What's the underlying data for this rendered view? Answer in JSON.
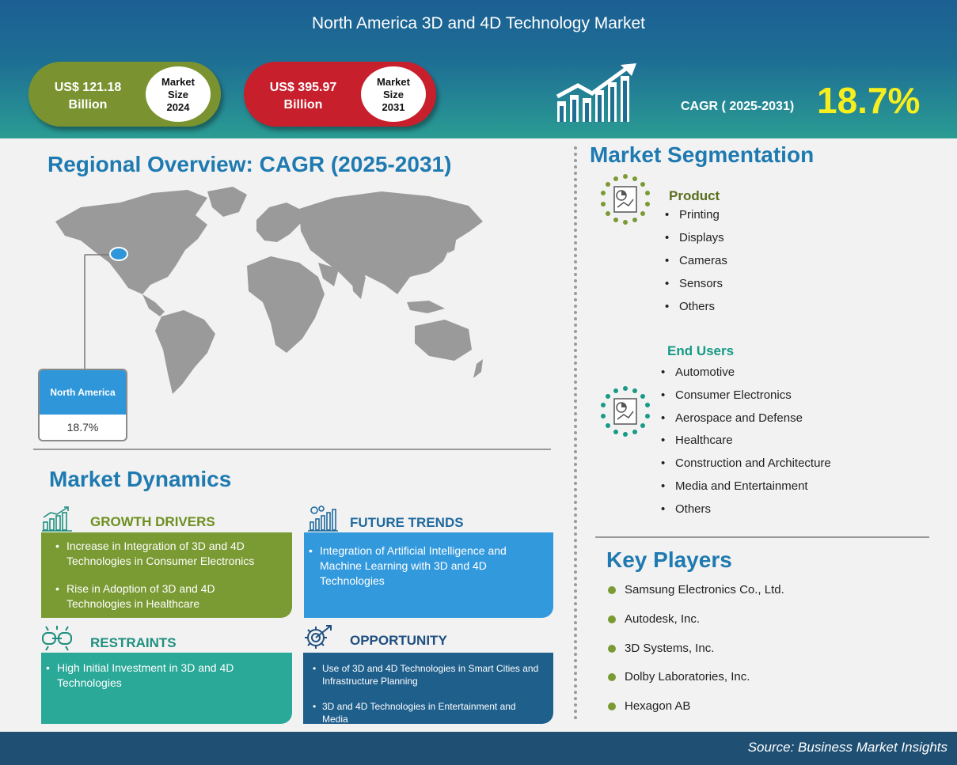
{
  "header": {
    "title": "North America 3D and 4D Technology Market",
    "market_2024": {
      "amount": "US$ 121.18",
      "unit": "Billion",
      "badge_line1": "Market",
      "badge_line2": "Size",
      "badge_year": "2024"
    },
    "market_2031": {
      "amount": "US$ 395.97",
      "unit": "Billion",
      "badge_line1": "Market",
      "badge_line2": "Size",
      "badge_year": "2031"
    },
    "cagr_label": "CAGR ( 2025-2031)",
    "cagr_value": "18.7%"
  },
  "regional": {
    "title": "Regional Overview: CAGR (2025-2031)",
    "region_name": "North America",
    "region_value": "18.7%"
  },
  "segmentation": {
    "title": "Market Segmentation",
    "product": {
      "heading": "Product",
      "items": [
        "Printing",
        "Displays",
        "Cameras",
        "Sensors",
        "Others"
      ]
    },
    "end_users": {
      "heading": "End Users",
      "items": [
        "Automotive",
        "Consumer Electronics",
        "Aerospace and Defense",
        "Healthcare",
        "Construction and Architecture",
        "Media and Entertainment",
        "Others"
      ]
    }
  },
  "dynamics": {
    "title": "Market Dynamics",
    "growth_drivers": {
      "heading": "GROWTH DRIVERS",
      "items": [
        "Increase  in Integration of 3D and 4D Technologies in Consumer Electronics",
        "Rise in Adoption of 3D and 4D Technologies in Healthcare"
      ]
    },
    "future_trends": {
      "heading": "FUTURE TRENDS",
      "items": [
        "Integration of Artificial Intelligence and Machine Learning with 3D and 4D Technologies"
      ]
    },
    "restraints": {
      "heading": "RESTRAINTS",
      "items": [
        "High Initial Investment in 3D and 4D Technologies"
      ]
    },
    "opportunity": {
      "heading": "OPPORTUNITY",
      "items": [
        "Use of 3D and 4D Technologies in Smart Cities and Infrastructure Planning",
        "3D and 4D Technologies in Entertainment and Media"
      ]
    }
  },
  "key_players": {
    "title": "Key Players",
    "items": [
      "Samsung Electronics Co., Ltd.",
      "Autodesk, Inc.",
      "3D Systems, Inc.",
      "Dolby Laboratories,  Inc.",
      "Hexagon AB"
    ]
  },
  "footer": {
    "source": "Source: Business Market Insights"
  },
  "colors": {
    "header_blue": "#1b5f93",
    "teal": "#2a9c93",
    "olive": "#7a9330",
    "red": "#c81f2d",
    "cagr_yellow": "#f7ee1e",
    "heading_blue": "#1e7ab0"
  },
  "icons": [
    "growth-chart-icon",
    "pie-chart-document-icon",
    "bar-chart-icon",
    "trend-chart-icon",
    "broken-chain-icon",
    "gear-target-icon",
    "map-pin-icon"
  ]
}
